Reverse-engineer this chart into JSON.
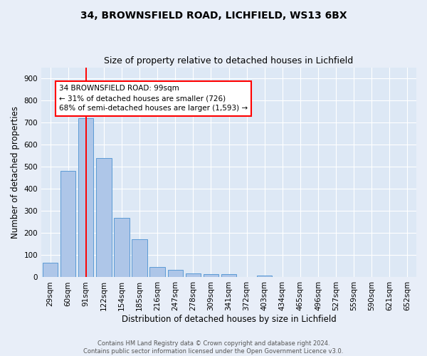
{
  "title": "34, BROWNSFIELD ROAD, LICHFIELD, WS13 6BX",
  "subtitle": "Size of property relative to detached houses in Lichfield",
  "xlabel": "Distribution of detached houses by size in Lichfield",
  "ylabel": "Number of detached properties",
  "footer_line1": "Contains HM Land Registry data © Crown copyright and database right 2024.",
  "footer_line2": "Contains public sector information licensed under the Open Government Licence v3.0.",
  "bar_labels": [
    "29sqm",
    "60sqm",
    "91sqm",
    "122sqm",
    "154sqm",
    "185sqm",
    "216sqm",
    "247sqm",
    "278sqm",
    "309sqm",
    "341sqm",
    "372sqm",
    "403sqm",
    "434sqm",
    "465sqm",
    "496sqm",
    "527sqm",
    "559sqm",
    "590sqm",
    "621sqm",
    "652sqm"
  ],
  "bar_values": [
    65,
    480,
    720,
    540,
    270,
    173,
    48,
    35,
    17,
    14,
    14,
    0,
    8,
    0,
    0,
    0,
    0,
    0,
    0,
    0,
    0
  ],
  "bar_color": "#aec6e8",
  "bar_edge_color": "#5b9bd5",
  "property_line_x": 2,
  "annotation_line1": "34 BROWNSFIELD ROAD: 99sqm",
  "annotation_line2": "← 31% of detached houses are smaller (726)",
  "annotation_line3": "68% of semi-detached houses are larger (1,593) →",
  "ylim": [
    0,
    950
  ],
  "yticks": [
    0,
    100,
    200,
    300,
    400,
    500,
    600,
    700,
    800,
    900
  ],
  "background_color": "#dde8f5",
  "fig_background_color": "#e8eef8",
  "grid_color": "#ffffff",
  "title_fontsize": 10,
  "subtitle_fontsize": 9,
  "axis_label_fontsize": 8.5,
  "tick_fontsize": 7.5,
  "footer_fontsize": 6,
  "annotation_fontsize": 7.5
}
